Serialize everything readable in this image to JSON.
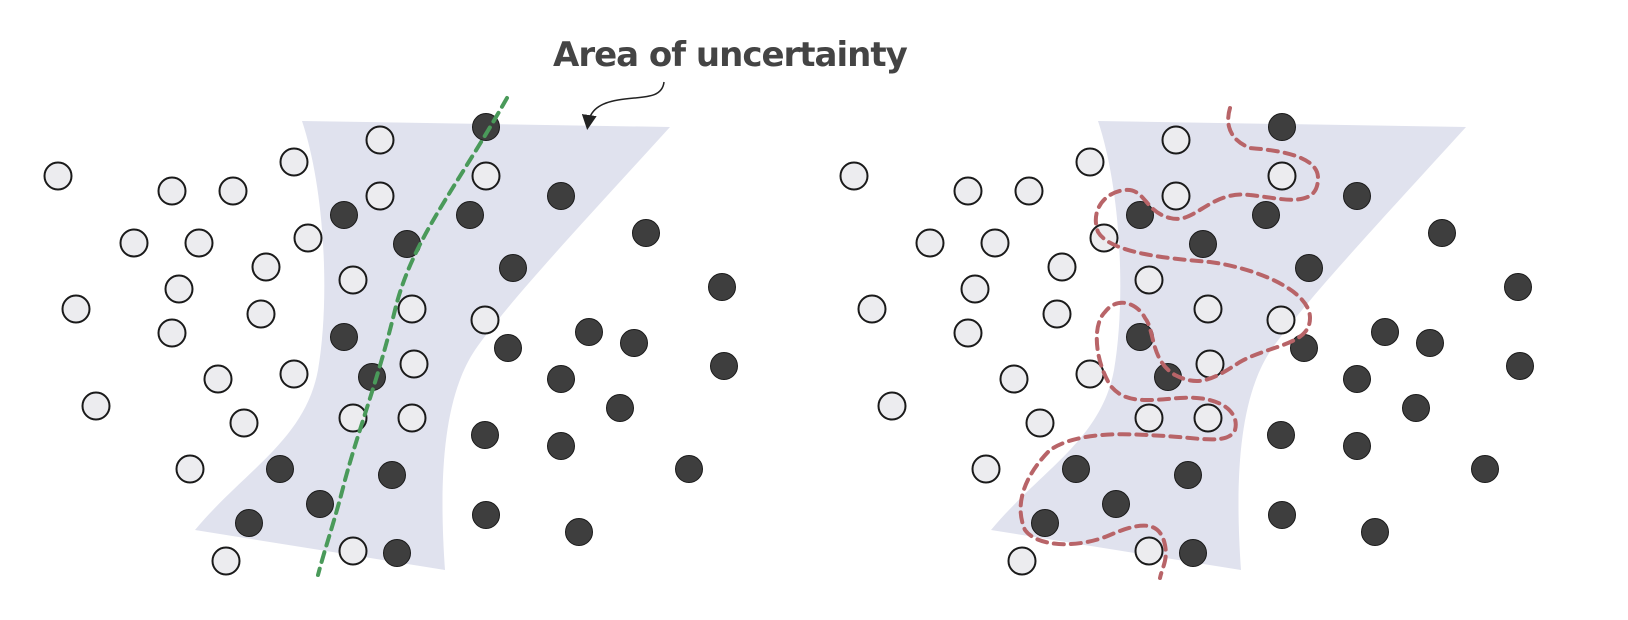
{
  "annotation": {
    "label": "Area of uncertainty"
  },
  "colors": {
    "uncertainty_region": "#e0e2ee",
    "light_point_fill": "#ececef",
    "dark_point_fill": "#3e3e3e",
    "point_stroke": "#1a1a1a",
    "simple_boundary": "#4a9a5a",
    "complex_boundary": "#b86468",
    "label_text": "#444444",
    "arrow": "#222222"
  },
  "panels": [
    {
      "name": "simple-boundary",
      "boundary": "smooth"
    },
    {
      "name": "overfit-boundary",
      "boundary": "wiggly"
    }
  ]
}
